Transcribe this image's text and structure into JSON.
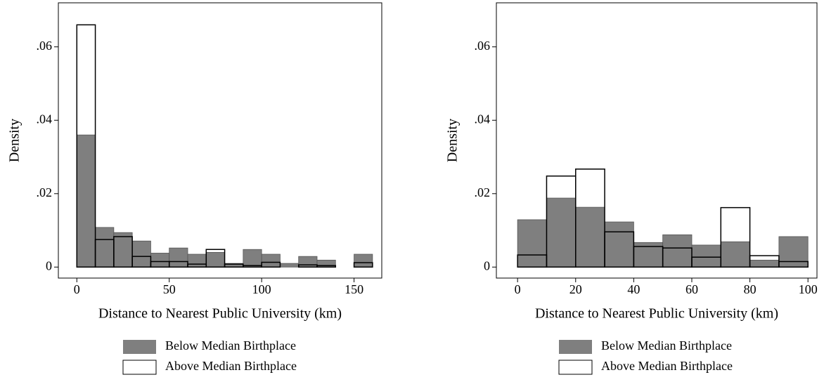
{
  "chart_data": [
    {
      "type": "histogram",
      "x_label": "Distance to Nearest Public University (km)",
      "y_label": "Density",
      "bins": [
        0,
        10,
        20,
        30,
        40,
        50,
        60,
        70,
        80,
        90,
        100,
        110,
        120,
        130,
        140,
        150,
        160
      ],
      "series": [
        {
          "name": "Below Median Birthplace",
          "color": "#7f7f7f",
          "values": [
            0.036,
            0.0108,
            0.0094,
            0.0071,
            0.0038,
            0.0052,
            0.0035,
            0.004,
            0.001,
            0.0048,
            0.0035,
            0.001,
            0.0029,
            0.0019,
            0,
            0.0035
          ]
        },
        {
          "name": "Above Median Birthplace",
          "color": "none",
          "values": [
            0.066,
            0.0075,
            0.0083,
            0.0029,
            0.0015,
            0.0015,
            0.0008,
            0.0048,
            0.0008,
            0.0004,
            0.0013,
            0,
            0.0006,
            0.0004,
            0,
            0.0012
          ]
        }
      ],
      "xlim": [
        -10,
        165
      ],
      "ylim": [
        -0.003,
        0.072
      ],
      "xticks": [
        0,
        50,
        100,
        150
      ],
      "yticks": [
        0,
        {
          "value": 0.02,
          "label": ".02"
        },
        {
          "value": 0.04,
          "label": ".04"
        },
        {
          "value": 0.06,
          "label": ".06"
        }
      ]
    },
    {
      "type": "histogram",
      "x_label": "Distance to Nearest Public University (km)",
      "y_label": "Density",
      "bins": [
        0,
        10,
        20,
        30,
        40,
        50,
        60,
        70,
        80,
        90,
        100
      ],
      "series": [
        {
          "name": "Below Median Birthplace",
          "color": "#7f7f7f",
          "values": [
            0.0129,
            0.0188,
            0.0163,
            0.0123,
            0.0067,
            0.0088,
            0.006,
            0.0069,
            0.0019,
            0.0083
          ]
        },
        {
          "name": "Above Median Birthplace",
          "color": "none",
          "values": [
            0.0033,
            0.0248,
            0.0267,
            0.0096,
            0.0056,
            0.0052,
            0.0027,
            0.0162,
            0.0031,
            0.0015
          ]
        }
      ],
      "xlim": [
        -7.3,
        103.1
      ],
      "ylim": [
        -0.003,
        0.072
      ],
      "xticks": [
        0,
        20,
        40,
        60,
        80,
        100
      ],
      "yticks": [
        0,
        {
          "value": 0.02,
          "label": ".02"
        },
        {
          "value": 0.04,
          "label": ".04"
        },
        {
          "value": 0.06,
          "label": ".06"
        }
      ]
    }
  ]
}
